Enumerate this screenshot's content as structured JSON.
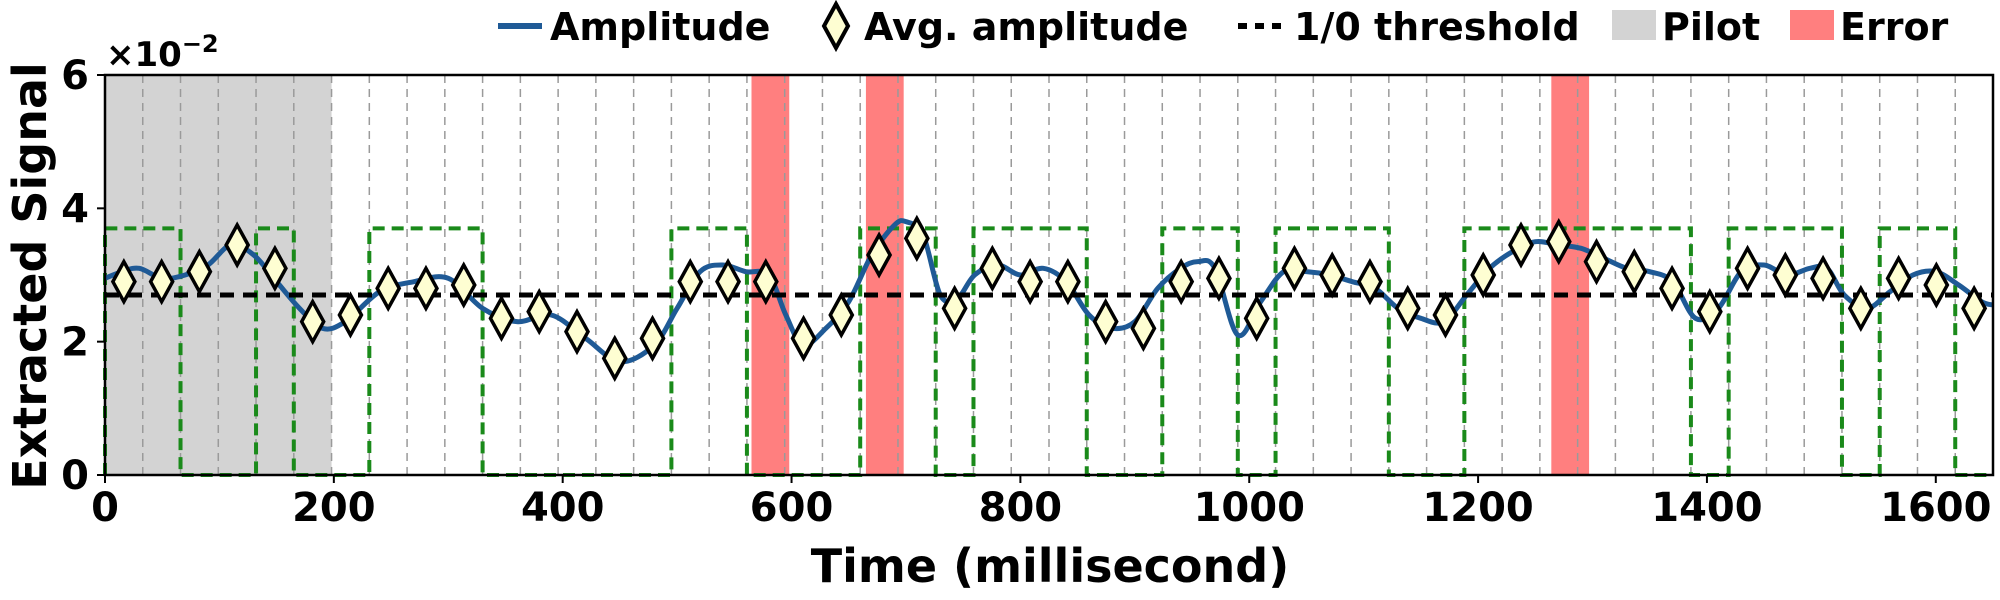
{
  "chart_data": {
    "type": "line",
    "xlabel": "Time (millisecond)",
    "ylabel": "Extracted Signal",
    "y_multiplier_label": "×10",
    "y_multiplier_exp": "−2",
    "xlim": [
      0,
      1650
    ],
    "ylim": [
      0,
      6
    ],
    "x_ticks": [
      0,
      200,
      400,
      600,
      800,
      1000,
      1200,
      1400,
      1600
    ],
    "x_tick_labels": [
      "0",
      "200",
      "400",
      "600",
      "800",
      "1000",
      "1200",
      "1400",
      "1600"
    ],
    "y_ticks": [
      0,
      2,
      4,
      6
    ],
    "y_tick_labels": [
      "0",
      "2",
      "4",
      "6"
    ],
    "legend": {
      "position": "top",
      "entries": [
        {
          "key": "amplitude",
          "label": "Amplitude"
        },
        {
          "key": "avg",
          "label": "Avg. amplitude"
        },
        {
          "key": "threshold",
          "label": "1/0 threshold"
        },
        {
          "key": "pilot",
          "label": "Pilot"
        },
        {
          "key": "error",
          "label": "Error"
        }
      ]
    },
    "colors": {
      "amplitude": "#1f5a96",
      "avg_fill": "#fefed2",
      "avg_edge": "#000000",
      "threshold": "#000000",
      "pilot": "#d3d3d3",
      "error": "#ff7f7f",
      "bits": "#1a8a1a",
      "grid": "#9a9a9a"
    },
    "threshold": 2.7,
    "pilot_range": [
      0,
      198
    ],
    "error_ranges": [
      [
        565,
        598
      ],
      [
        665,
        698
      ],
      [
        1264,
        1297
      ]
    ],
    "slot_grid": {
      "start": 0,
      "end": 1650,
      "step": 33,
      "style": "dashed"
    },
    "bit_levels": {
      "high": 3.7,
      "low": 0
    },
    "bit_segments": [
      [
        0,
        66,
        1
      ],
      [
        66,
        132,
        0
      ],
      [
        132,
        165,
        1
      ],
      [
        165,
        231,
        0
      ],
      [
        231,
        330,
        1
      ],
      [
        330,
        495,
        0
      ],
      [
        495,
        561,
        1
      ],
      [
        561,
        660,
        0
      ],
      [
        660,
        726,
        1
      ],
      [
        726,
        759,
        0
      ],
      [
        759,
        858,
        1
      ],
      [
        858,
        924,
        0
      ],
      [
        924,
        990,
        1
      ],
      [
        990,
        1023,
        0
      ],
      [
        1023,
        1122,
        1
      ],
      [
        1122,
        1188,
        0
      ],
      [
        1188,
        1386,
        1
      ],
      [
        1386,
        1419,
        0
      ],
      [
        1419,
        1518,
        1
      ],
      [
        1518,
        1551,
        0
      ],
      [
        1551,
        1617,
        1
      ],
      [
        1617,
        1650,
        0
      ]
    ],
    "amplitude_series": {
      "name": "Amplitude",
      "x": [
        0,
        15,
        30,
        50,
        70,
        90,
        110,
        130,
        150,
        170,
        190,
        210,
        240,
        270,
        300,
        330,
        360,
        390,
        420,
        450,
        480,
        500,
        520,
        540,
        560,
        580,
        595,
        610,
        630,
        650,
        670,
        690,
        700,
        715,
        730,
        745,
        760,
        780,
        800,
        820,
        840,
        860,
        880,
        900,
        920,
        940,
        955,
        970,
        990,
        1010,
        1030,
        1050,
        1070,
        1090,
        1110,
        1130,
        1150,
        1170,
        1190,
        1210,
        1230,
        1250,
        1270,
        1290,
        1310,
        1330,
        1350,
        1370,
        1390,
        1410,
        1430,
        1450,
        1470,
        1490,
        1505,
        1520,
        1540,
        1560,
        1580,
        1600,
        1620,
        1640,
        1650
      ],
      "y": [
        2.95,
        3.05,
        3.1,
        2.95,
        3.0,
        3.15,
        3.45,
        3.3,
        2.9,
        2.5,
        2.2,
        2.3,
        2.75,
        2.9,
        2.95,
        2.5,
        2.3,
        2.4,
        2.05,
        1.7,
        1.95,
        2.5,
        3.05,
        3.15,
        3.05,
        3.0,
        2.4,
        1.95,
        2.2,
        2.6,
        3.3,
        3.75,
        3.8,
        3.6,
        2.7,
        2.65,
        3.0,
        3.15,
        3.0,
        3.1,
        2.9,
        2.4,
        2.2,
        2.3,
        2.8,
        3.1,
        3.2,
        3.1,
        2.1,
        2.6,
        3.05,
        3.05,
        3.0,
        2.9,
        2.8,
        2.5,
        2.35,
        2.3,
        2.7,
        3.1,
        3.35,
        3.5,
        3.45,
        3.4,
        3.25,
        3.1,
        3.05,
        2.9,
        2.35,
        2.5,
        3.05,
        3.15,
        3.0,
        3.1,
        3.1,
        2.7,
        2.5,
        2.75,
        3.0,
        3.05,
        2.85,
        2.6,
        2.55
      ]
    },
    "avg_series": {
      "name": "Avg. amplitude",
      "x": [
        16.5,
        49.5,
        82.5,
        115.5,
        148.5,
        181.5,
        214.5,
        247.5,
        280.5,
        313.5,
        346.5,
        379.5,
        412.5,
        445.5,
        478.5,
        511.5,
        544.5,
        577.5,
        610.5,
        643.5,
        676.5,
        709.5,
        742.5,
        775.5,
        808.5,
        841.5,
        874.5,
        907.5,
        940.5,
        973.5,
        1006.5,
        1039.5,
        1072.5,
        1105.5,
        1138.5,
        1171.5,
        1204.5,
        1237.5,
        1270.5,
        1303.5,
        1336.5,
        1369.5,
        1402.5,
        1435.5,
        1468.5,
        1501.5,
        1534.5,
        1567.5,
        1600.5,
        1633.5
      ],
      "y": [
        2.9,
        2.9,
        3.05,
        3.45,
        3.1,
        2.3,
        2.4,
        2.8,
        2.8,
        2.85,
        2.35,
        2.45,
        2.15,
        1.75,
        2.05,
        2.9,
        2.9,
        2.9,
        2.05,
        2.4,
        3.3,
        3.55,
        2.5,
        3.1,
        2.9,
        2.9,
        2.3,
        2.2,
        2.9,
        2.95,
        2.35,
        3.1,
        3.0,
        2.9,
        2.5,
        2.4,
        3.0,
        3.45,
        3.5,
        3.2,
        3.05,
        2.8,
        2.45,
        3.1,
        3.0,
        2.95,
        2.5,
        2.95,
        2.85,
        2.5
      ]
    }
  }
}
